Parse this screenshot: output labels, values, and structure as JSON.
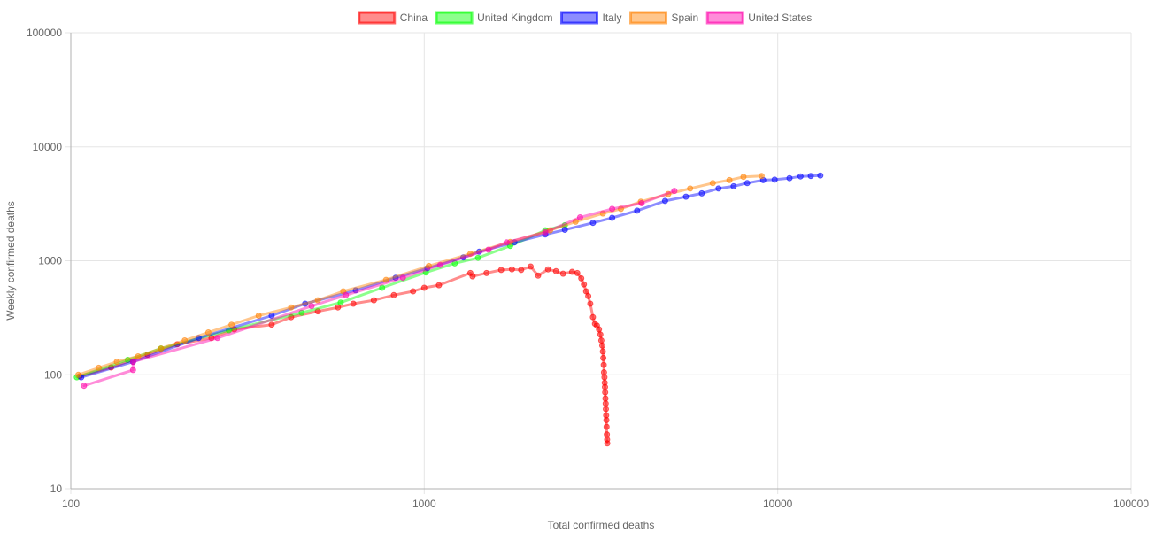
{
  "chart_data": {
    "type": "line",
    "x_scale": "log",
    "y_scale": "log",
    "xlabel": "Total confirmed deaths",
    "ylabel": "Weekly confirmed deaths",
    "xlim": [
      100,
      100000
    ],
    "ylim": [
      10,
      100000
    ],
    "x_ticks": [
      100,
      1000,
      10000,
      100000
    ],
    "y_ticks": [
      10,
      100,
      1000,
      10000,
      100000
    ],
    "grid": true,
    "legend_position": "top",
    "series": [
      {
        "name": "China",
        "color": "#ff0000",
        "points": [
          [
            106,
            97
          ],
          [
            130,
            116
          ],
          [
            165,
            150
          ],
          [
            200,
            185
          ],
          [
            250,
            210
          ],
          [
            290,
            250
          ],
          [
            370,
            275
          ],
          [
            420,
            320
          ],
          [
            500,
            360
          ],
          [
            570,
            390
          ],
          [
            630,
            420
          ],
          [
            720,
            450
          ],
          [
            820,
            500
          ],
          [
            930,
            540
          ],
          [
            1000,
            580
          ],
          [
            1100,
            610
          ],
          [
            1350,
            780
          ],
          [
            1370,
            730
          ],
          [
            1500,
            780
          ],
          [
            1650,
            830
          ],
          [
            1770,
            840
          ],
          [
            1880,
            830
          ],
          [
            2000,
            890
          ],
          [
            2100,
            740
          ],
          [
            2240,
            840
          ],
          [
            2360,
            810
          ],
          [
            2470,
            770
          ],
          [
            2620,
            800
          ],
          [
            2710,
            780
          ],
          [
            2780,
            700
          ],
          [
            2830,
            620
          ],
          [
            2870,
            540
          ],
          [
            2910,
            490
          ],
          [
            2950,
            420
          ],
          [
            3000,
            320
          ],
          [
            3040,
            280
          ],
          [
            3080,
            270
          ],
          [
            3120,
            250
          ],
          [
            3150,
            225
          ],
          [
            3170,
            200
          ],
          [
            3190,
            180
          ],
          [
            3200,
            160
          ],
          [
            3210,
            140
          ],
          [
            3220,
            122
          ],
          [
            3225,
            105
          ],
          [
            3235,
            95
          ],
          [
            3240,
            85
          ],
          [
            3245,
            78
          ],
          [
            3250,
            70
          ],
          [
            3255,
            62
          ],
          [
            3260,
            56
          ],
          [
            3265,
            50
          ],
          [
            3270,
            44
          ],
          [
            3275,
            40
          ],
          [
            3280,
            35
          ],
          [
            3285,
            30
          ],
          [
            3290,
            27
          ],
          [
            3295,
            25
          ]
        ]
      },
      {
        "name": "United Kingdom",
        "color": "#00ff00",
        "points": [
          [
            104,
            95
          ],
          [
            145,
            135
          ],
          [
            180,
            170
          ],
          [
            280,
            245
          ],
          [
            450,
            350
          ],
          [
            580,
            430
          ],
          [
            760,
            580
          ],
          [
            1010,
            790
          ],
          [
            1220,
            950
          ],
          [
            1420,
            1060
          ],
          [
            1750,
            1350
          ],
          [
            2200,
            1850
          ],
          [
            2500,
            2050
          ]
        ]
      },
      {
        "name": "Italy",
        "color": "#0000ff",
        "points": [
          [
            107,
            95
          ],
          [
            150,
            130
          ],
          [
            230,
            210
          ],
          [
            370,
            330
          ],
          [
            460,
            420
          ],
          [
            640,
            550
          ],
          [
            830,
            710
          ],
          [
            1020,
            860
          ],
          [
            1290,
            1070
          ],
          [
            1430,
            1200
          ],
          [
            1800,
            1450
          ],
          [
            2200,
            1700
          ],
          [
            2500,
            1870
          ],
          [
            3000,
            2150
          ],
          [
            3400,
            2380
          ],
          [
            4000,
            2750
          ],
          [
            4800,
            3350
          ],
          [
            5500,
            3650
          ],
          [
            6100,
            3900
          ],
          [
            6800,
            4300
          ],
          [
            7500,
            4500
          ],
          [
            8200,
            4800
          ],
          [
            9100,
            5100
          ],
          [
            9800,
            5150
          ],
          [
            10800,
            5300
          ],
          [
            11600,
            5500
          ],
          [
            12400,
            5550
          ],
          [
            13200,
            5600
          ]
        ]
      },
      {
        "name": "Spain",
        "color": "#ff8000",
        "points": [
          [
            105,
            100
          ],
          [
            120,
            115
          ],
          [
            135,
            130
          ],
          [
            155,
            145
          ],
          [
            180,
            170
          ],
          [
            210,
            200
          ],
          [
            245,
            235
          ],
          [
            285,
            275
          ],
          [
            340,
            330
          ],
          [
            420,
            390
          ],
          [
            500,
            450
          ],
          [
            590,
            540
          ],
          [
            780,
            680
          ],
          [
            1030,
            900
          ],
          [
            1350,
            1150
          ],
          [
            1750,
            1460
          ],
          [
            2270,
            1850
          ],
          [
            2680,
            2200
          ],
          [
            3200,
            2600
          ],
          [
            3600,
            2850
          ],
          [
            4100,
            3300
          ],
          [
            4900,
            3850
          ],
          [
            5650,
            4300
          ],
          [
            6550,
            4800
          ],
          [
            7300,
            5100
          ],
          [
            8000,
            5450
          ],
          [
            9000,
            5550
          ]
        ]
      },
      {
        "name": "United States",
        "color": "#ff00aa",
        "points": [
          [
            109,
            80
          ],
          [
            150,
            110
          ],
          [
            150,
            130
          ],
          [
            260,
            210
          ],
          [
            480,
            400
          ],
          [
            600,
            500
          ],
          [
            870,
            710
          ],
          [
            1110,
            920
          ],
          [
            1520,
            1250
          ],
          [
            1710,
            1450
          ],
          [
            2200,
            1780
          ],
          [
            2760,
            2400
          ],
          [
            3400,
            2850
          ],
          [
            4120,
            3200
          ],
          [
            5100,
            4100
          ]
        ]
      }
    ]
  }
}
